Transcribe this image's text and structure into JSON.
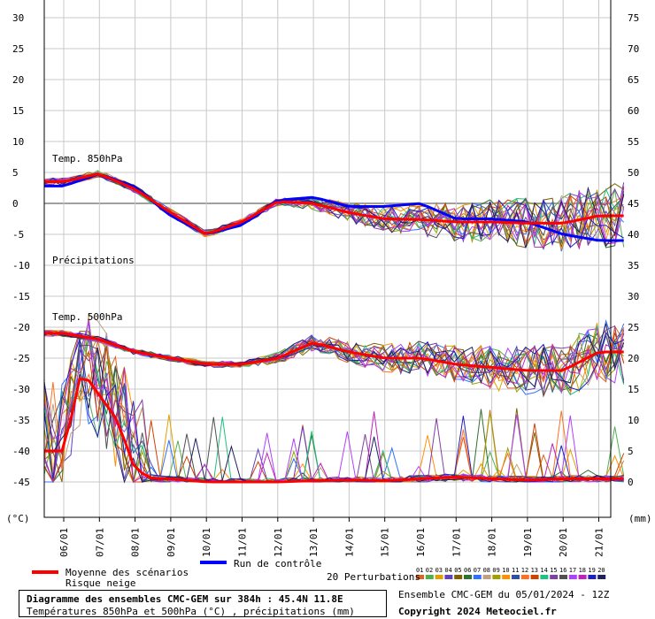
{
  "chart_data": {
    "type": "line",
    "title": "Diagramme des ensembles CMC-GEM sur 384h : 45.4N 11.8E",
    "subtitle": "Températures 850hPa et 500hPa (°C) , précipitations (mm)",
    "ylabel_left": "(°C)",
    "ylabel_right": "(mm)",
    "y_left_ticks": [
      "30",
      "25",
      "20",
      "15",
      "10",
      "5",
      "0",
      "-5",
      "-10",
      "-15",
      "-20",
      "-25",
      "-30",
      "-35",
      "-40",
      "-45"
    ],
    "y_right_ticks": [
      "75",
      "70",
      "65",
      "60",
      "55",
      "50",
      "45",
      "40",
      "35",
      "30",
      "25",
      "20",
      "15",
      "10",
      "5",
      "0"
    ],
    "ylim_left": [
      -45,
      30
    ],
    "ylim_right": [
      0,
      75
    ],
    "x_ticks": [
      "06/01",
      "07/01",
      "08/01",
      "09/01",
      "10/01",
      "11/01",
      "12/01",
      "13/01",
      "14/01",
      "15/01",
      "16/01",
      "17/01",
      "18/01",
      "19/01",
      "20/01",
      "21/01"
    ],
    "annotations": {
      "t850": "Temp. 850hPa",
      "precip": "Précipitations",
      "t500": "Temp. 500hPa"
    },
    "legend": {
      "mean": "Moyenne des scénarios",
      "snow": "Risque neige",
      "control": "Run de contrôle",
      "perturbations": "20 Perturbations",
      "perturbation_ids": [
        "01",
        "02",
        "03",
        "04",
        "05",
        "06",
        "07",
        "08",
        "09",
        "10",
        "11",
        "12",
        "13",
        "14",
        "15",
        "16",
        "17",
        "18",
        "19",
        "20"
      ]
    },
    "colors": {
      "mean": "#ff0000",
      "control": "#0000ff",
      "perturbations": [
        "#e06020",
        "#50b050",
        "#e0a000",
        "#6040c0",
        "#806000",
        "#307030",
        "#3070ff",
        "#c0a080",
        "#a0a000",
        "#ff9000",
        "#3050a0",
        "#ff7020",
        "#d04000",
        "#20c080",
        "#8040a0",
        "#505050",
        "#b040ff",
        "#c020c0",
        "#2020c0",
        "#202060"
      ]
    },
    "series": [
      {
        "name": "Moyenne des scénarios - Temp. 850hPa",
        "x": [
          0,
          1,
          2,
          3,
          4,
          5,
          6,
          7,
          8,
          9,
          10,
          11,
          12,
          13,
          14,
          15
        ],
        "values": [
          3.5,
          4.8,
          2.3,
          -1.5,
          -5.0,
          -3.0,
          0.3,
          0.0,
          -1.5,
          -2.5,
          -2.6,
          -3.0,
          -3.0,
          -3.2,
          -3.2,
          -2.0
        ]
      },
      {
        "name": "Run de contrôle - Temp. 850hPa",
        "x": [
          0,
          1,
          2,
          3,
          4,
          5,
          6,
          7,
          8,
          9,
          10,
          11,
          12,
          13,
          14,
          15
        ],
        "values": [
          2.8,
          4.8,
          2.6,
          -2.0,
          -5.0,
          -3.5,
          0.5,
          1.0,
          -0.5,
          -0.5,
          0.0,
          -2.5,
          -2.5,
          -3.0,
          -5.0,
          -6.0
        ]
      },
      {
        "name": "Moyenne des scénarios - Temp. 500hPa",
        "x": [
          0,
          1,
          2,
          3,
          4,
          5,
          6,
          7,
          8,
          9,
          10,
          11,
          12,
          13,
          14,
          15
        ],
        "values": [
          -21,
          -22,
          -24,
          -25,
          -26,
          -26,
          -25,
          -22.5,
          -24,
          -25,
          -25,
          -26,
          -26.5,
          -27,
          -27,
          -24
        ]
      },
      {
        "name": "Moyenne des scénarios - Précipitations",
        "x": [
          0,
          0.5,
          1,
          1.5,
          2,
          2.5,
          3,
          4,
          5,
          6,
          7,
          8,
          9,
          10,
          11,
          12,
          13,
          14,
          15
        ],
        "values": [
          5,
          18,
          14,
          10,
          2,
          0.5,
          0.5,
          0,
          0,
          0,
          0.2,
          0.3,
          0.2,
          0.5,
          0.8,
          0.5,
          0.3,
          0.5,
          0.5
        ]
      }
    ]
  },
  "footer": {
    "ensemble_run": "Ensemble CMC-GEM du 05/01/2024 - 12Z",
    "copyright": "Copyright 2024 Meteociel.fr"
  }
}
